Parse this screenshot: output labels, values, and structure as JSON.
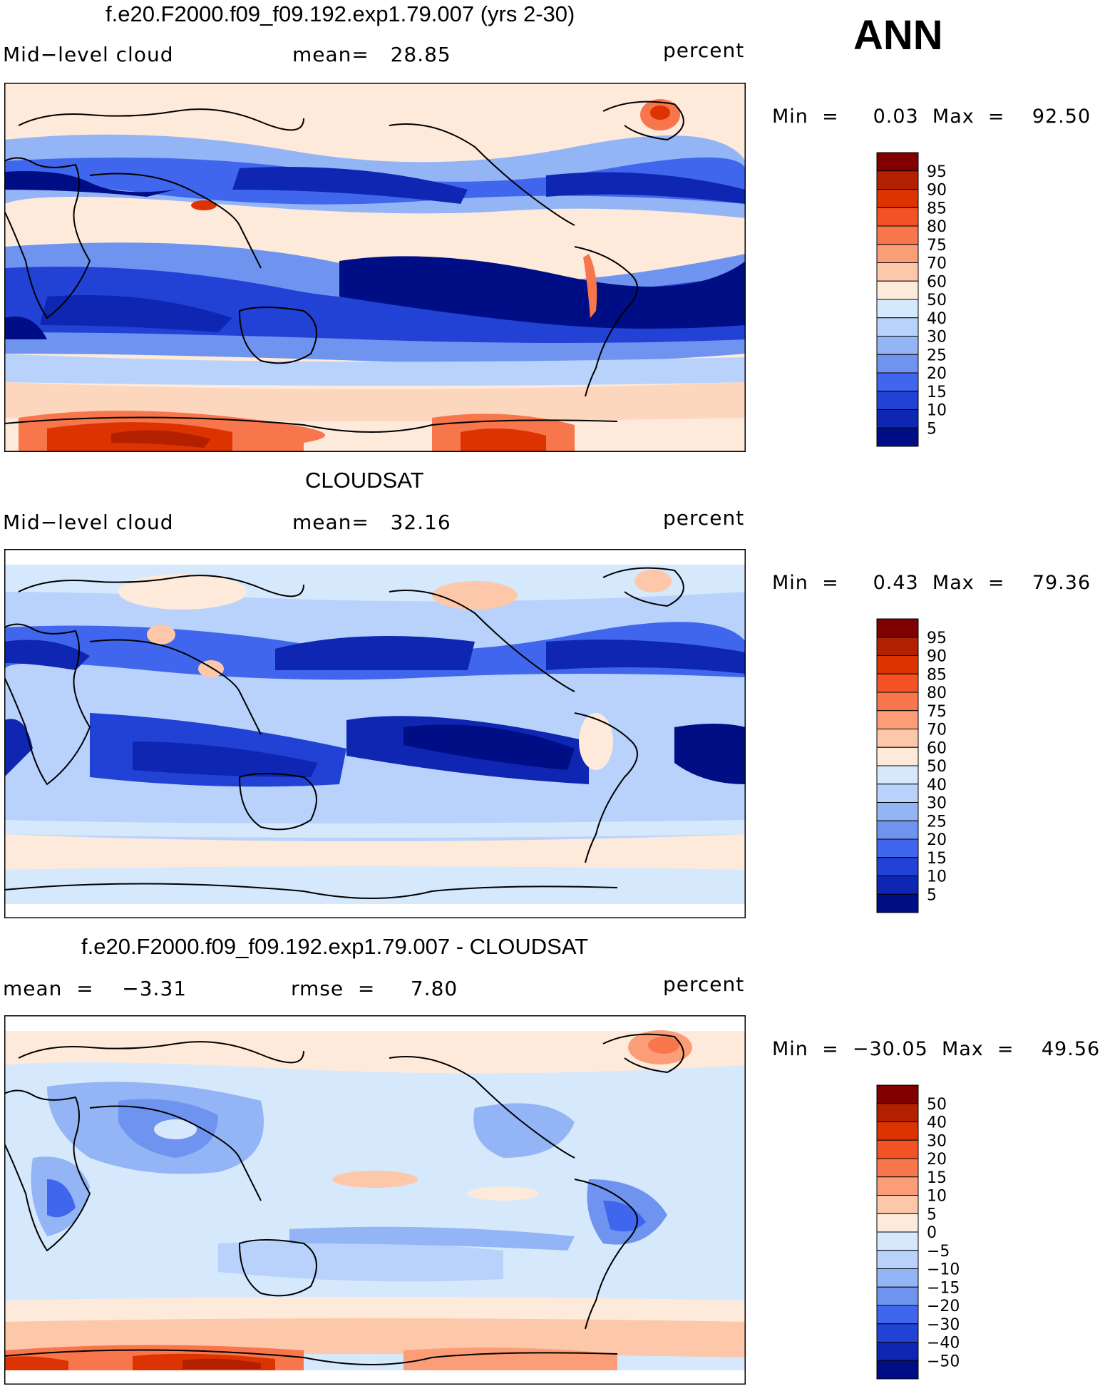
{
  "season": "ANN",
  "panels": [
    {
      "title": "f.e20.F2000.f09_f09.192.exp1.79.007 (yrs 2-30)",
      "left_label": "Mid−level cloud",
      "center_label": "mean=   28.85",
      "right_label": "percent",
      "stats": "Min  =     0.03  Max  =    92.50",
      "colorbar_ticks": [
        "95",
        "90",
        "85",
        "80",
        "75",
        "70",
        "60",
        "50",
        "40",
        "30",
        "25",
        "20",
        "15",
        "10",
        "5"
      ]
    },
    {
      "title": "CLOUDSAT",
      "left_label": "Mid−level cloud",
      "center_label": "mean=   32.16",
      "right_label": "percent",
      "stats": "Min  =     0.43  Max  =    79.36",
      "colorbar_ticks": [
        "95",
        "90",
        "85",
        "80",
        "75",
        "70",
        "60",
        "50",
        "40",
        "30",
        "25",
        "20",
        "15",
        "10",
        "5"
      ]
    },
    {
      "title": "f.e20.F2000.f09_f09.192.exp1.79.007 - CLOUDSAT",
      "left_label": "mean  =    −3.31",
      "center_label": "rmse  =     7.80",
      "right_label": "percent",
      "stats": "Min  =  −30.05  Max  =    49.56",
      "colorbar_ticks": [
        "50",
        "40",
        "30",
        "20",
        "15",
        "10",
        "5",
        "0",
        "−5",
        "−10",
        "−15",
        "−20",
        "−30",
        "−40",
        "−50"
      ]
    }
  ],
  "chart_data": {
    "type": "heatmap",
    "colorbar_colors": [
      "#800000",
      "#b22000",
      "#dd3300",
      "#f45225",
      "#f8764b",
      "#fb9e78",
      "#fdc8aa",
      "#fdeadb",
      "#d6e8fc",
      "#b8d2fb",
      "#93b4f5",
      "#6f94f0",
      "#3f66ec",
      "#2142d4",
      "#0e26b2",
      "#000e86"
    ]
  }
}
